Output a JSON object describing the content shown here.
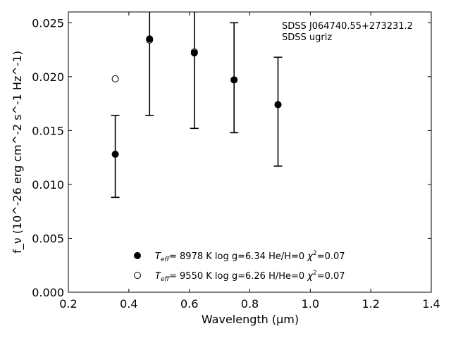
{
  "chart_data": {
    "type": "scatter",
    "xlabel": "Wavelength (μm)",
    "ylabel": "f_ν (10^-26 erg cm^-2 s^-1 Hz^-1)",
    "xlim": [
      0.2,
      1.4
    ],
    "ylim": [
      0.0,
      0.026
    ],
    "x_ticks": [
      0.2,
      0.4,
      0.6,
      0.8,
      1.0,
      1.2,
      1.4
    ],
    "x_tick_labels": [
      "0.2",
      "0.4",
      "0.6",
      "0.8",
      "1.0",
      "1.2",
      "1.4"
    ],
    "y_ticks": [
      0.0,
      0.005,
      0.01,
      0.015,
      0.02,
      0.025
    ],
    "y_tick_labels": [
      "0.000",
      "0.005",
      "0.010",
      "0.015",
      "0.020",
      "0.025"
    ],
    "annotation": [
      "SDSS J064740.55+273231.2",
      "SDSS ugriz"
    ],
    "legend_position": "bottom-center",
    "grid": false,
    "series": [
      {
        "legend": {
          "teff_label": "T",
          "teff_sub": "eff",
          "rest": "=  8978 K  log g=6.34  He/H=0  ",
          "chi": "χ",
          "chi_sup": "2",
          "chi_rest": "=0.07"
        },
        "marker": "filled-circle",
        "x": [
          0.3551,
          0.4686,
          0.6166,
          0.748,
          0.8932
        ],
        "y": [
          0.0128,
          0.0235,
          0.0222,
          0.0197,
          0.0174
        ],
        "yerr_low": [
          0.0088,
          0.0164,
          0.0152,
          0.0148,
          0.0117
        ],
        "yerr_high": [
          0.0164,
          0.031,
          0.0295,
          0.025,
          0.0218
        ]
      },
      {
        "legend": {
          "teff_label": "T",
          "teff_sub": "eff",
          "rest": "=  9550 K  log g=6.26  H/He=0  ",
          "chi": "χ",
          "chi_sup": "2",
          "chi_rest": "=0.07"
        },
        "marker": "open-circle",
        "x": [
          0.3551,
          0.4686,
          0.6166,
          0.748,
          0.8932
        ],
        "y": [
          0.0198,
          0.0234,
          0.0223,
          0.0197,
          0.0174
        ]
      }
    ]
  }
}
